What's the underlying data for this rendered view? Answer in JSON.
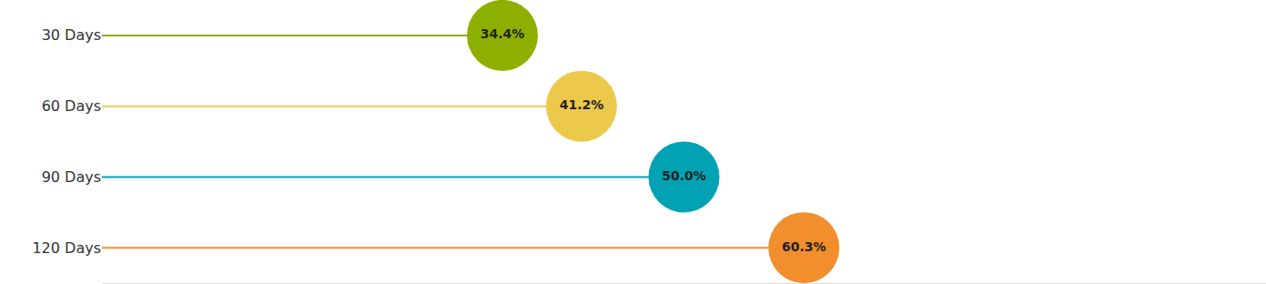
{
  "chart_data": {
    "type": "lollipop",
    "orientation": "horizontal",
    "categories": [
      "30 Days",
      "60 Days",
      "90 Days",
      "120 Days"
    ],
    "values": [
      34.4,
      41.2,
      50.0,
      60.3
    ],
    "value_labels": [
      "34.4%",
      "41.2%",
      "50.0%",
      "60.3%"
    ],
    "colors": [
      "#8db000",
      "#ecc94b",
      "#00a2b4",
      "#f28e2b"
    ],
    "xlim": [
      0,
      100
    ],
    "xticks": [],
    "grid": false,
    "data_labels": true,
    "tick_labels": "y"
  }
}
